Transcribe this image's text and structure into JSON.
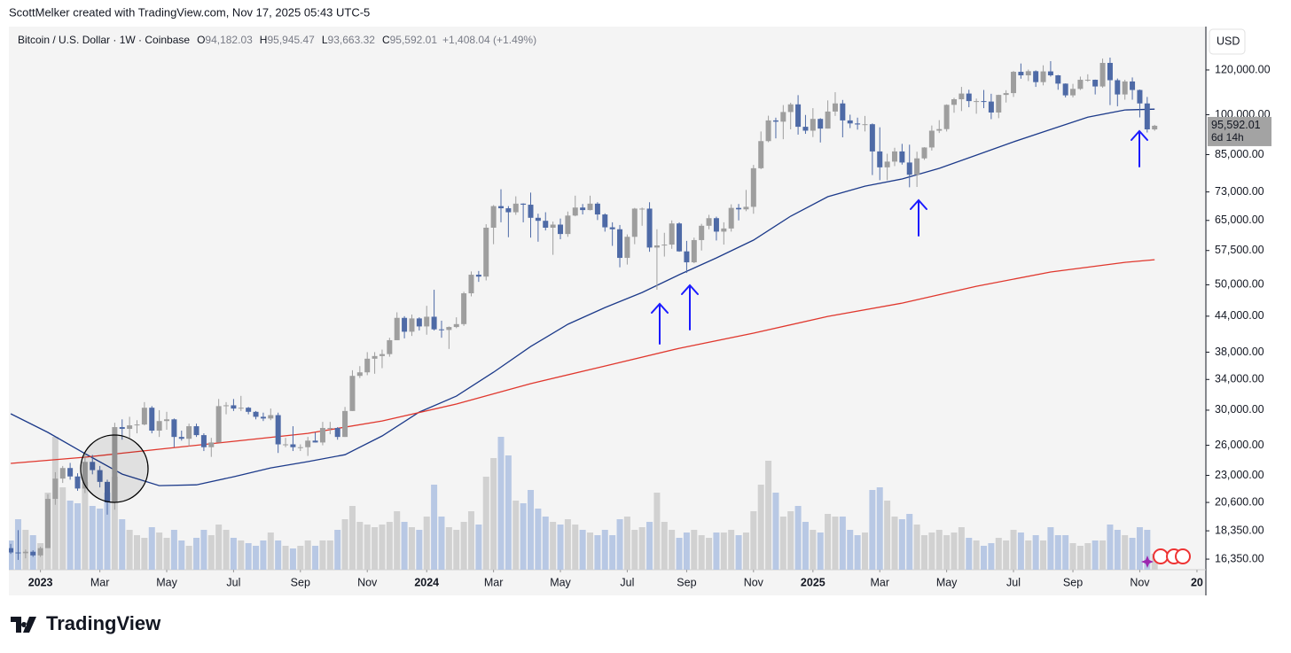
{
  "header": "ScottMelker created with TradingView.com, Nov 17, 2025 05:43 UTC-5",
  "footer": "TradingView",
  "chart_data": {
    "type": "candlestick",
    "legend": {
      "symbol": "Bitcoin / U.S. Dollar · 1W · Coinbase",
      "fields": [
        {
          "key": "O",
          "value": "94,182.03"
        },
        {
          "key": "H",
          "value": "95,945.47"
        },
        {
          "key": "L",
          "value": "93,663.32"
        },
        {
          "key": "C",
          "value": "95,592.01"
        }
      ],
      "change": "+1,408.04 (+1.49%)"
    },
    "currency": "USD",
    "last_price_label": "95,592.01",
    "countdown": "6d 14h",
    "log_scale": true,
    "up_color": "#9e9e9e",
    "down_color": "#4e6aa6",
    "up_volume_color": "#cdcdcd",
    "down_volume_color": "#b1c3e2",
    "ylim": [
      15660,
      143200
    ],
    "yticks": [
      {
        "value": 16350,
        "label": "16,350.00"
      },
      {
        "value": 18350,
        "label": "18,350.00"
      },
      {
        "value": 20600,
        "label": "20,600.00"
      },
      {
        "value": 23000,
        "label": "23,000.00"
      },
      {
        "value": 26000,
        "label": "26,000.00"
      },
      {
        "value": 30000,
        "label": "30,000.00"
      },
      {
        "value": 34000,
        "label": "34,000.00"
      },
      {
        "value": 38000,
        "label": "38,000.00"
      },
      {
        "value": 44000,
        "label": "44,000.00"
      },
      {
        "value": 50000,
        "label": "50,000.00"
      },
      {
        "value": 57500,
        "label": "57,500.00"
      },
      {
        "value": 65000,
        "label": "65,000.00"
      },
      {
        "value": 73000,
        "label": "73,000.00"
      },
      {
        "value": 85000,
        "label": "85,000.00"
      },
      {
        "value": 100000,
        "label": "100,000.00"
      },
      {
        "value": 120000,
        "label": "120,000.00"
      }
    ],
    "xlim": [
      -0.25,
      160.9
    ],
    "xticks": [
      {
        "value": 4,
        "label": "2023"
      },
      {
        "value": 12,
        "label": "Mar"
      },
      {
        "value": 21,
        "label": "May"
      },
      {
        "value": 30,
        "label": "Jul"
      },
      {
        "value": 39,
        "label": "Sep"
      },
      {
        "value": 48,
        "label": "Nov"
      },
      {
        "value": 56,
        "label": "2024"
      },
      {
        "value": 65,
        "label": "Mar"
      },
      {
        "value": 74,
        "label": "May"
      },
      {
        "value": 83,
        "label": "Jul"
      },
      {
        "value": 91,
        "label": "Sep"
      },
      {
        "value": 100,
        "label": "Nov"
      },
      {
        "value": 108,
        "label": "2025"
      },
      {
        "value": 117,
        "label": "Mar"
      },
      {
        "value": 126,
        "label": "May"
      },
      {
        "value": 135,
        "label": "Jul"
      },
      {
        "value": 143,
        "label": "Sep"
      },
      {
        "value": 152,
        "label": "Nov"
      },
      {
        "value": 159.7,
        "label": "20"
      }
    ],
    "candles": [
      [
        17100,
        17400,
        16700,
        16800
      ],
      [
        16800,
        18400,
        16300,
        16750
      ],
      [
        16750,
        17000,
        16400,
        16850
      ],
      [
        16850,
        16950,
        16500,
        16600
      ],
      [
        16600,
        17200,
        16500,
        17100
      ],
      [
        17100,
        21300,
        17100,
        20900
      ],
      [
        20900,
        23300,
        20400,
        22700
      ],
      [
        22700,
        23900,
        22300,
        23700
      ],
      [
        23700,
        24200,
        22600,
        22900
      ],
      [
        22900,
        23200,
        21600,
        21800
      ],
      [
        21800,
        25200,
        21400,
        24300
      ],
      [
        24300,
        25000,
        23100,
        23500
      ],
      [
        23500,
        23900,
        21900,
        22400
      ],
      [
        22400,
        22600,
        19600,
        20600
      ],
      [
        20600,
        28500,
        20000,
        28000
      ],
      [
        28000,
        28900,
        26600,
        27800
      ],
      [
        27800,
        29200,
        26800,
        28200
      ],
      [
        28200,
        28800,
        27300,
        28300
      ],
      [
        28300,
        31000,
        28200,
        30300
      ],
      [
        30300,
        30500,
        27300,
        27600
      ],
      [
        27600,
        30000,
        26900,
        28700
      ],
      [
        28700,
        29800,
        27700,
        28900
      ],
      [
        28900,
        29000,
        25800,
        26900
      ],
      [
        26900,
        27600,
        26500,
        26700
      ],
      [
        26700,
        28400,
        25900,
        28100
      ],
      [
        28100,
        28400,
        26900,
        27100
      ],
      [
        27100,
        27300,
        25400,
        25800
      ],
      [
        25800,
        26800,
        24800,
        26300
      ],
      [
        26300,
        31400,
        26300,
        30500
      ],
      [
        30500,
        31000,
        29500,
        30600
      ],
      [
        30600,
        31400,
        29900,
        30200
      ],
      [
        30200,
        31800,
        29900,
        30300
      ],
      [
        30300,
        30400,
        29500,
        29800
      ],
      [
        29800,
        29900,
        28900,
        29200
      ],
      [
        29200,
        29700,
        28700,
        29000
      ],
      [
        29000,
        30200,
        28800,
        29400
      ],
      [
        29400,
        29700,
        25200,
        26100
      ],
      [
        26100,
        26800,
        25800,
        26100
      ],
      [
        26100,
        28100,
        25400,
        25800
      ],
      [
        25800,
        26100,
        25400,
        25800
      ],
      [
        25800,
        26900,
        24900,
        26500
      ],
      [
        26500,
        27400,
        26300,
        26300
      ],
      [
        26300,
        28600,
        26000,
        27900
      ],
      [
        27900,
        28600,
        27200,
        27900
      ],
      [
        27900,
        28000,
        26600,
        26900
      ],
      [
        26900,
        30400,
        26900,
        29900
      ],
      [
        29900,
        35300,
        29900,
        34500
      ],
      [
        34500,
        35900,
        34200,
        35000
      ],
      [
        35000,
        38000,
        34600,
        37000
      ],
      [
        37000,
        38000,
        34800,
        37400
      ],
      [
        37400,
        38400,
        35600,
        37700
      ],
      [
        37700,
        40300,
        37300,
        39900
      ],
      [
        39900,
        44700,
        39900,
        43700
      ],
      [
        43700,
        44000,
        40200,
        41300
      ],
      [
        41300,
        44300,
        40600,
        43600
      ],
      [
        43600,
        43800,
        41500,
        42200
      ],
      [
        42200,
        45900,
        40800,
        43900
      ],
      [
        43900,
        49000,
        41500,
        41700
      ],
      [
        41700,
        43200,
        40300,
        41600
      ],
      [
        41600,
        42200,
        38500,
        42100
      ],
      [
        42100,
        43800,
        41900,
        42600
      ],
      [
        42600,
        48600,
        42300,
        48300
      ],
      [
        48300,
        52800,
        47700,
        52100
      ],
      [
        52100,
        52900,
        50600,
        51700
      ],
      [
        51700,
        64000,
        50900,
        63100
      ],
      [
        63100,
        69200,
        59000,
        68900
      ],
      [
        68900,
        73800,
        64500,
        68300
      ],
      [
        68300,
        68900,
        60700,
        67200
      ],
      [
        67200,
        71700,
        66500,
        69600
      ],
      [
        69600,
        69700,
        64500,
        69300
      ],
      [
        69300,
        72800,
        60600,
        65700
      ],
      [
        65700,
        66800,
        59600,
        64900
      ],
      [
        64900,
        67200,
        62400,
        63100
      ],
      [
        63100,
        64700,
        56500,
        63900
      ],
      [
        63900,
        65500,
        60200,
        61500
      ],
      [
        61500,
        67400,
        60800,
        66300
      ],
      [
        66300,
        71900,
        66100,
        68500
      ],
      [
        68500,
        69500,
        66600,
        67800
      ],
      [
        67800,
        71900,
        67700,
        69600
      ],
      [
        69600,
        70000,
        65100,
        66600
      ],
      [
        66600,
        66900,
        62100,
        63200
      ],
      [
        63200,
        64500,
        58600,
        62700
      ],
      [
        62700,
        63800,
        53700,
        55800
      ],
      [
        55800,
        61400,
        54300,
        60800
      ],
      [
        60800,
        68400,
        59000,
        68200
      ],
      [
        68200,
        68500,
        63600,
        68200
      ],
      [
        68200,
        70000,
        57200,
        58200
      ],
      [
        58200,
        62700,
        49000,
        58700
      ],
      [
        58700,
        61800,
        56100,
        58900
      ],
      [
        58900,
        65000,
        57900,
        64200
      ],
      [
        64200,
        64500,
        57200,
        57300
      ],
      [
        57300,
        59800,
        52500,
        54800
      ],
      [
        54800,
        60600,
        54600,
        60000
      ],
      [
        60000,
        64100,
        57500,
        63600
      ],
      [
        63600,
        66500,
        62700,
        65600
      ],
      [
        65600,
        66000,
        59900,
        62100
      ],
      [
        62100,
        64500,
        58900,
        62900
      ],
      [
        62900,
        69400,
        62100,
        68400
      ],
      [
        68400,
        69500,
        65000,
        68000
      ],
      [
        68000,
        73600,
        67500,
        68700
      ],
      [
        68700,
        81500,
        66800,
        80400
      ],
      [
        80400,
        93400,
        80100,
        89800
      ],
      [
        89800,
        99600,
        89400,
        97700
      ],
      [
        97700,
        98800,
        90800,
        97200
      ],
      [
        97200,
        104000,
        90500,
        101100
      ],
      [
        101100,
        105000,
        94200,
        104300
      ],
      [
        104300,
        108300,
        92200,
        95200
      ],
      [
        95200,
        99900,
        92500,
        93700
      ],
      [
        93700,
        102700,
        91300,
        98300
      ],
      [
        98300,
        98600,
        89300,
        94500
      ],
      [
        94500,
        106000,
        94500,
        101300
      ],
      [
        101300,
        109600,
        99500,
        104700
      ],
      [
        104700,
        106200,
        91200,
        97700
      ],
      [
        97700,
        100000,
        94700,
        96500
      ],
      [
        96500,
        98800,
        94100,
        96100
      ],
      [
        96100,
        99500,
        93400,
        96200
      ],
      [
        96200,
        96500,
        78200,
        86100
      ],
      [
        86100,
        95000,
        76600,
        80700
      ],
      [
        80700,
        85300,
        76600,
        82600
      ],
      [
        82600,
        87400,
        81100,
        86100
      ],
      [
        86100,
        88800,
        81600,
        82300
      ],
      [
        82300,
        88500,
        74400,
        78300
      ],
      [
        78300,
        86000,
        74500,
        83700
      ],
      [
        83700,
        87600,
        83200,
        87500
      ],
      [
        87500,
        95700,
        86400,
        93700
      ],
      [
        93700,
        97800,
        92800,
        94300
      ],
      [
        94300,
        104300,
        93400,
        104100
      ],
      [
        104100,
        107100,
        100800,
        106500
      ],
      [
        106500,
        112000,
        101500,
        109000
      ],
      [
        109000,
        110700,
        103100,
        105700
      ],
      [
        105700,
        106800,
        100400,
        105700
      ],
      [
        105700,
        110600,
        102700,
        105500
      ],
      [
        105500,
        108900,
        98200,
        100900
      ],
      [
        100900,
        108500,
        98600,
        108400
      ],
      [
        108400,
        110500,
        105100,
        109200
      ],
      [
        109200,
        119500,
        107500,
        119100
      ],
      [
        119100,
        123200,
        115800,
        117400
      ],
      [
        117400,
        120200,
        114700,
        119400
      ],
      [
        119400,
        119800,
        112000,
        114200
      ],
      [
        114200,
        122300,
        112700,
        119300
      ],
      [
        119300,
        124400,
        116800,
        117400
      ],
      [
        117400,
        117600,
        110700,
        113500
      ],
      [
        113500,
        113600,
        107300,
        108200
      ],
      [
        108200,
        113400,
        107300,
        111100
      ],
      [
        111100,
        116800,
        110600,
        115300
      ],
      [
        115300,
        117900,
        114400,
        115300
      ],
      [
        115300,
        115400,
        108600,
        112200
      ],
      [
        112200,
        125700,
        111600,
        123500
      ],
      [
        123500,
        126200,
        104000,
        115100
      ],
      [
        115100,
        115900,
        103500,
        108600
      ],
      [
        108600,
        115300,
        106300,
        114500
      ],
      [
        114500,
        116400,
        106300,
        110600
      ],
      [
        110600,
        110800,
        98900,
        104700
      ],
      [
        104700,
        107500,
        93000,
        94200
      ],
      [
        94182.03,
        95945.47,
        93663.32,
        95592.01
      ]
    ],
    "volume": [
      22,
      38,
      30,
      26,
      20,
      58,
      100,
      62,
      52,
      50,
      66,
      48,
      46,
      58,
      70,
      38,
      30,
      26,
      24,
      32,
      28,
      24,
      30,
      22,
      18,
      24,
      30,
      26,
      34,
      30,
      24,
      22,
      20,
      18,
      22,
      28,
      22,
      18,
      16,
      18,
      22,
      18,
      22,
      22,
      30,
      38,
      48,
      36,
      34,
      32,
      34,
      36,
      44,
      36,
      32,
      30,
      40,
      64,
      40,
      32,
      30,
      36,
      44,
      34,
      70,
      84,
      100,
      86,
      52,
      50,
      60,
      46,
      40,
      36,
      34,
      38,
      34,
      30,
      28,
      26,
      30,
      26,
      38,
      40,
      30,
      32,
      36,
      58,
      36,
      30,
      24,
      28,
      30,
      26,
      24,
      28,
      28,
      30,
      26,
      28,
      44,
      64,
      82,
      58,
      40,
      44,
      48,
      36,
      30,
      28,
      42,
      40,
      40,
      30,
      26,
      28,
      60,
      62,
      52,
      40,
      38,
      42,
      34,
      26,
      28,
      30,
      26,
      28,
      32,
      24,
      22,
      18,
      20,
      24,
      22,
      30,
      28,
      22,
      26,
      22,
      32,
      26,
      26,
      20,
      18,
      20,
      22,
      22,
      34,
      30,
      26,
      24,
      32,
      30,
      12
    ],
    "series": [
      {
        "color": "#1c3a8a",
        "x": [
          0,
          5,
          10,
          15,
          20,
          25,
          30,
          35,
          40,
          45,
          50,
          55,
          60,
          65,
          70,
          75,
          80,
          85,
          90,
          95,
          100,
          105,
          110,
          115,
          120,
          125,
          130,
          135,
          140,
          145,
          150,
          154
        ],
        "values": [
          29560,
          27400,
          25130,
          23120,
          22060,
          22130,
          22870,
          23710,
          24330,
          25020,
          27010,
          29770,
          31770,
          35020,
          38880,
          42570,
          45570,
          48470,
          52110,
          55780,
          59990,
          66140,
          71600,
          74750,
          76960,
          80360,
          84810,
          89520,
          94180,
          99020,
          101960,
          102300
        ]
      },
      {
        "color": "#e0372d",
        "x": [
          0,
          10,
          20,
          30,
          40,
          50,
          60,
          70,
          80,
          90,
          100,
          110,
          120,
          130,
          140,
          150,
          154
        ],
        "values": [
          24150,
          24770,
          25590,
          26420,
          27300,
          28710,
          30760,
          33420,
          35920,
          38600,
          41060,
          43960,
          46400,
          49700,
          52670,
          54790,
          55390
        ]
      }
    ]
  }
}
